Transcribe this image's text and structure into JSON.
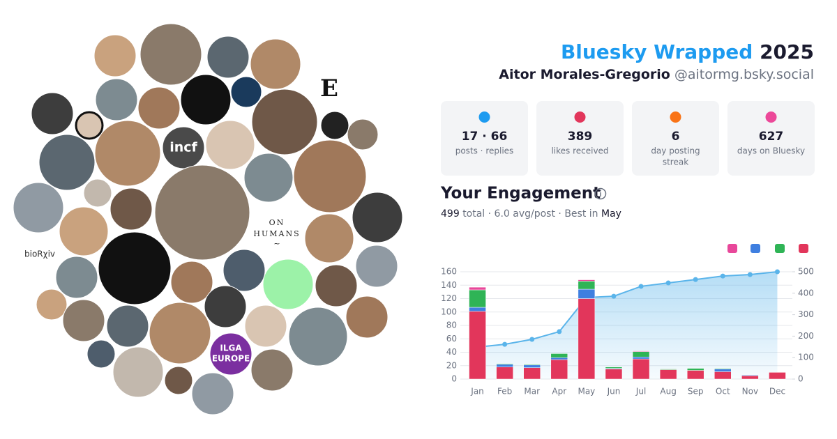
{
  "header": {
    "title": "Bluesky Wrapped",
    "year": "2025",
    "name": "Aitor Morales-Gregorio",
    "handle": "@aitormg.bsky.social"
  },
  "stats": [
    {
      "value": "17 · 66",
      "label": "posts · replies"
    },
    {
      "value": "389",
      "label": "likes received"
    },
    {
      "value": "6",
      "label": [
        "day posting",
        "streak"
      ]
    },
    {
      "value": "627",
      "label": "days on Bluesky"
    }
  ],
  "engagement": {
    "heading": "Your Engagement",
    "total": "499",
    "detail": "total · 6.0 avg/post · Best in",
    "best_month": "May"
  },
  "collage": {
    "labels": [
      "E",
      "incf",
      "ON",
      "HUMANS",
      "~",
      "bioRχiv",
      "ILGA",
      "EUROPE"
    ]
  },
  "chart_data": {
    "type": "bar",
    "stacked": true,
    "grid": true,
    "categories": [
      "Jan",
      "Feb",
      "Mar",
      "Apr",
      "May",
      "Jun",
      "Jul",
      "Aug",
      "Sep",
      "Oct",
      "Nov",
      "Dec"
    ],
    "series": [
      {
        "color": "#e2365b",
        "values": [
          101,
          18,
          17,
          29,
          120,
          15,
          30,
          14,
          13,
          11,
          5,
          10
        ]
      },
      {
        "color": "#3f7fe0",
        "values": [
          6,
          4,
          4,
          3,
          14,
          1,
          3,
          0,
          0,
          4,
          1,
          0
        ]
      },
      {
        "color": "#2fb456",
        "values": [
          26,
          1,
          1,
          6,
          12,
          2,
          8,
          1,
          3,
          1,
          0,
          0
        ]
      },
      {
        "color": "#e8479a",
        "values": [
          4,
          0,
          0,
          0,
          2,
          0,
          1,
          0,
          0,
          0,
          0,
          0
        ]
      },
      {
        "type": "area",
        "axis": "y2",
        "color": "#5ab4ea",
        "values": [
          149,
          162,
          185,
          221,
          380,
          386,
          432,
          448,
          464,
          480,
          487,
          500
        ]
      }
    ],
    "ylim": [
      0,
      160
    ],
    "yticks": [
      0,
      20,
      40,
      60,
      80,
      100,
      120,
      140,
      160
    ],
    "y2lim": [
      0,
      500
    ],
    "y2ticks": [
      0,
      100,
      200,
      300,
      400,
      500
    ]
  }
}
